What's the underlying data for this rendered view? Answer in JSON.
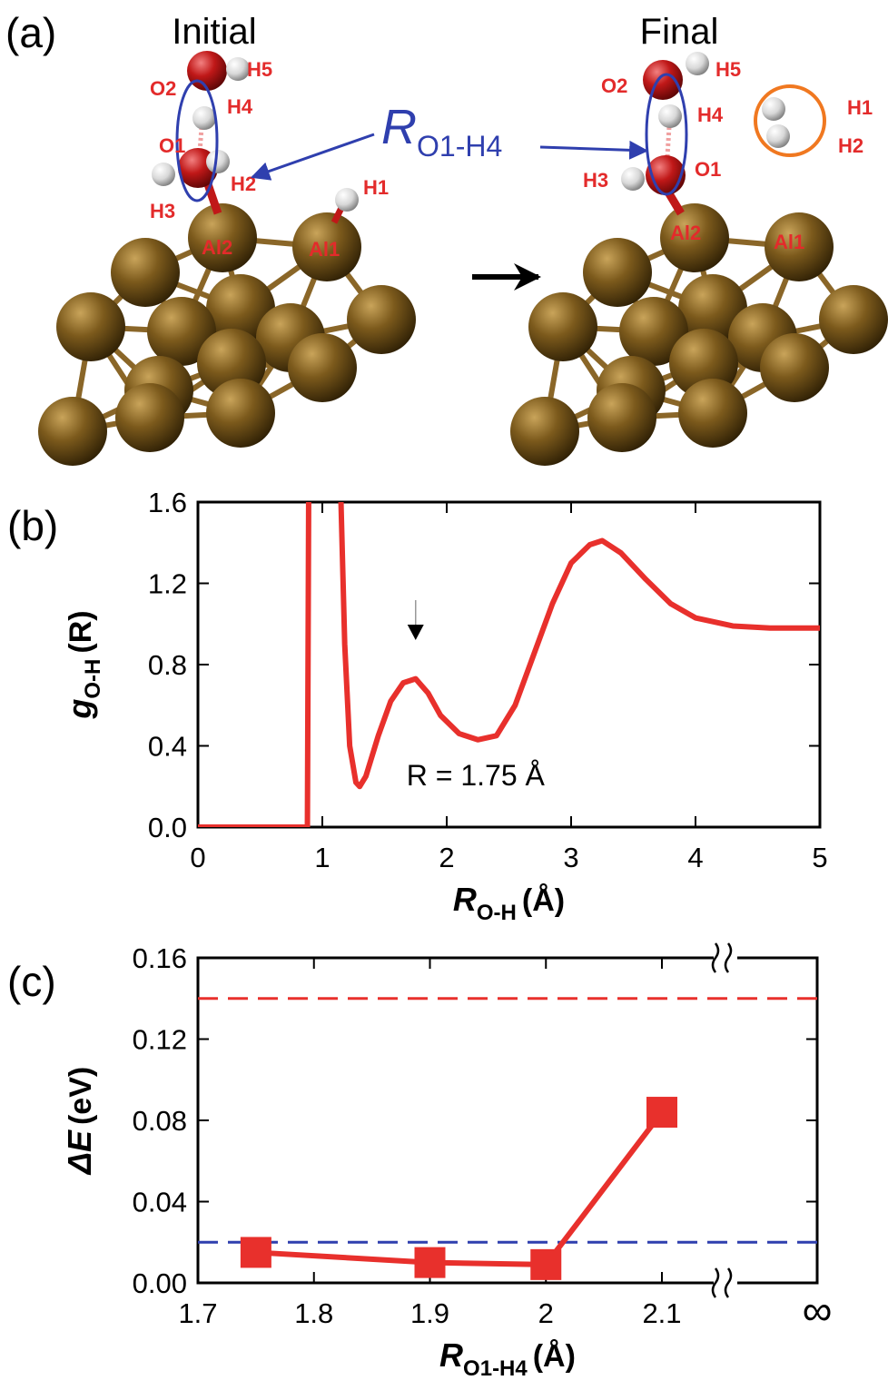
{
  "panel_a": {
    "panel_label": "(a)",
    "initial": {
      "title": "Initial",
      "atoms": [
        "O2",
        "H5",
        "H4",
        "O1",
        "H2",
        "H3",
        "H1",
        "Al2",
        "Al1"
      ]
    },
    "final": {
      "title": "Final",
      "atoms": [
        "O2",
        "H5",
        "H4",
        "O1",
        "H3",
        "H1",
        "H2",
        "Al2",
        "Al1"
      ]
    },
    "distance_label": {
      "symbol": "R",
      "subscript": "O1-H4"
    }
  },
  "chart_data": [
    {
      "type": "line",
      "panel_label": "(b)",
      "x_label": {
        "symbol": "R",
        "subscript": "O-H",
        "suffix": "(Å)"
      },
      "y_label": {
        "symbol": "g",
        "subscript": "O-H",
        "suffix": "(R)"
      },
      "annotation": {
        "text": "R = 1.75 Å",
        "x": 1.75
      },
      "xlim": [
        0,
        5
      ],
      "xticks": [
        0,
        1,
        2,
        3,
        4,
        5
      ],
      "ylim": [
        0,
        1.6
      ],
      "yticks": [
        {
          "value": 0,
          "label": "0.0"
        },
        0.4,
        0.8,
        1.2,
        1.6
      ],
      "series": [
        {
          "color": "#e8302c",
          "x": [
            0,
            0.87,
            0.88,
            0.89,
            1.0,
            1.15,
            1.18,
            1.22,
            1.27,
            1.3,
            1.35,
            1.45,
            1.55,
            1.65,
            1.75,
            1.85,
            1.95,
            2.1,
            2.25,
            2.4,
            2.55,
            2.7,
            2.85,
            3.0,
            3.15,
            3.25,
            3.4,
            3.6,
            3.8,
            4.0,
            4.3,
            4.6,
            5.0
          ],
          "values": [
            0,
            0,
            0,
            1.6,
            null,
            1.6,
            0.9,
            0.4,
            0.22,
            0.2,
            0.25,
            0.45,
            0.62,
            0.71,
            0.73,
            0.66,
            0.55,
            0.46,
            0.43,
            0.45,
            0.6,
            0.85,
            1.1,
            1.3,
            1.39,
            1.41,
            1.35,
            1.22,
            1.1,
            1.03,
            0.99,
            0.98,
            0.98
          ]
        }
      ]
    },
    {
      "type": "line",
      "panel_label": "(c)",
      "x_label": {
        "symbol": "R",
        "subscript": "O1-H4",
        "suffix": "(Å)"
      },
      "y_label": {
        "symbol": "ΔE",
        "suffix": "(eV)"
      },
      "x_end_label": "∞",
      "xlim": [
        1.7,
        2.1
      ],
      "xticks": [
        1.7,
        1.8,
        1.9,
        2,
        2.1
      ],
      "ylim": [
        0,
        0.16
      ],
      "yticks": [
        {
          "value": 0,
          "label": "0.00"
        },
        0.04,
        0.08,
        0.12,
        0.16
      ],
      "hlines": [
        {
          "value": 0.14,
          "color": "#e8302c"
        },
        {
          "value": 0.02,
          "color": "#2f3fae"
        }
      ],
      "series": [
        {
          "color": "#e8302c",
          "marker": "square",
          "x": [
            1.75,
            1.9,
            2.0,
            2.1
          ],
          "values": [
            0.015,
            0.01,
            0.009,
            0.084
          ]
        }
      ]
    }
  ]
}
